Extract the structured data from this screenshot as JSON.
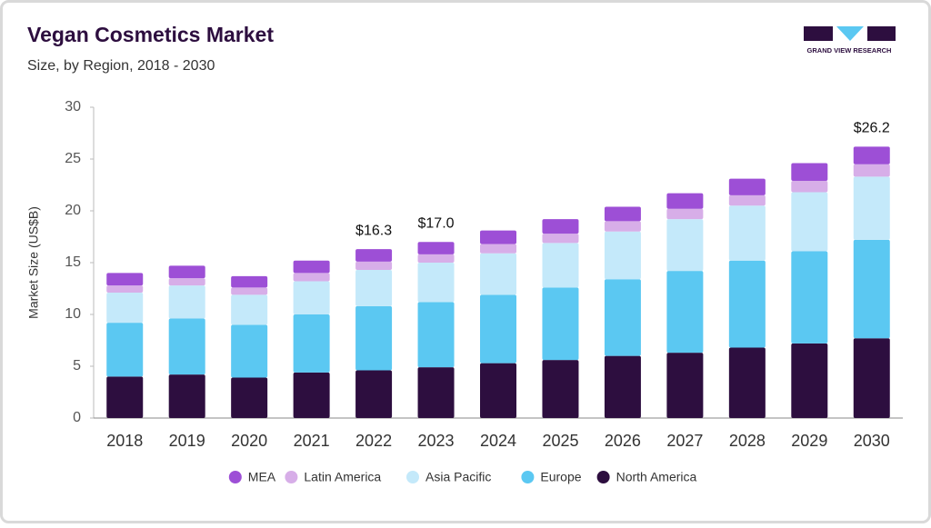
{
  "chart_data": {
    "type": "stacked-bar",
    "title": "Vegan Cosmetics Market",
    "subtitle": "Size, by Region, 2018 - 2030",
    "y_label": "Market Size (US$B)",
    "logo_text": "GRAND VIEW RESEARCH",
    "categories": [
      "2018",
      "2019",
      "2020",
      "2021",
      "2022",
      "2023",
      "2024",
      "2025",
      "2026",
      "2027",
      "2028",
      "2029",
      "2030"
    ],
    "series": [
      {
        "name": "North America",
        "color": "#2d0e3f",
        "values": [
          4.0,
          4.2,
          3.9,
          4.4,
          4.6,
          4.9,
          5.3,
          5.6,
          6.0,
          6.3,
          6.8,
          7.2,
          7.7
        ]
      },
      {
        "name": "Europe",
        "color": "#5bc8f2",
        "values": [
          5.2,
          5.4,
          5.1,
          5.6,
          6.2,
          6.3,
          6.6,
          7.0,
          7.4,
          7.9,
          8.4,
          8.9,
          9.5
        ]
      },
      {
        "name": "Asia Pacific",
        "color": "#c4e9fa",
        "values": [
          2.9,
          3.2,
          2.9,
          3.2,
          3.5,
          3.8,
          4.0,
          4.3,
          4.6,
          5.0,
          5.3,
          5.7,
          6.1
        ]
      },
      {
        "name": "Latin America",
        "color": "#d7aee8",
        "values": [
          0.7,
          0.7,
          0.7,
          0.8,
          0.8,
          0.8,
          0.9,
          0.9,
          1.0,
          1.0,
          1.0,
          1.1,
          1.2
        ]
      },
      {
        "name": "MEA",
        "color": "#9d4fd6",
        "values": [
          1.2,
          1.2,
          1.1,
          1.2,
          1.2,
          1.2,
          1.3,
          1.4,
          1.4,
          1.5,
          1.6,
          1.7,
          1.7
        ]
      }
    ],
    "annotations": [
      {
        "x": "2022",
        "value": 16.3,
        "label": "$16.3"
      },
      {
        "x": "2023",
        "value": 17.0,
        "label": "$17.0"
      },
      {
        "x": "2030",
        "value": 26.2,
        "label": "$26.2"
      }
    ],
    "ylim": [
      0,
      30
    ],
    "yticks": [
      0,
      5,
      10,
      15,
      20,
      25,
      30
    ],
    "grid": false
  }
}
